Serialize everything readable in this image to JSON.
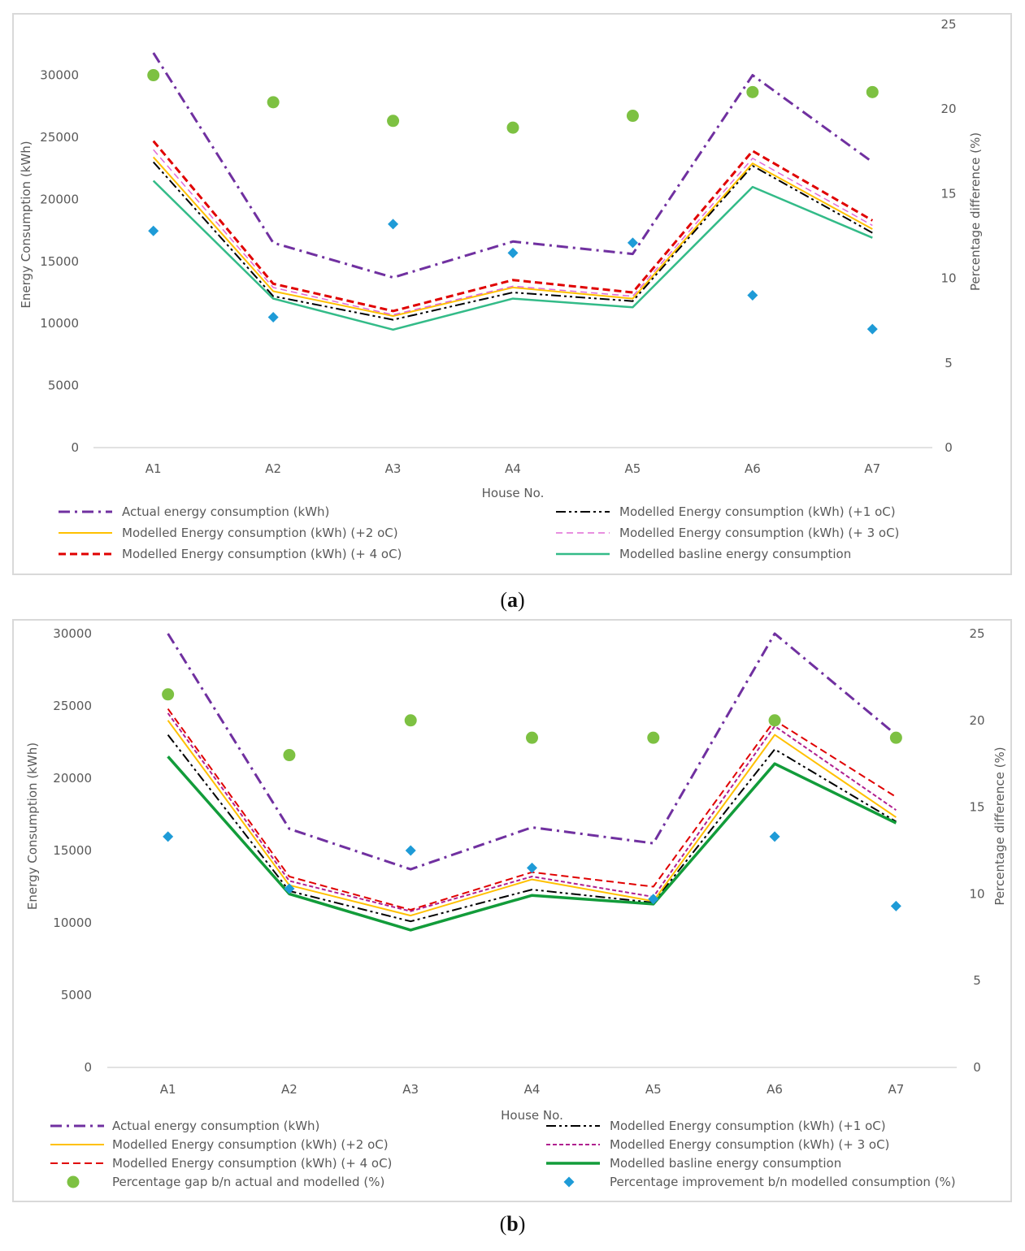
{
  "captions": {
    "a": "a",
    "b": "b"
  },
  "colors": {
    "actual": "#7030a0",
    "plus1": "#000000",
    "plus2": "#ffc000",
    "plus3": "#c00080",
    "plus4": "#e00000",
    "baseline_a": "#33bb88",
    "baseline_b": "#129c3a",
    "gap": "#7dc142",
    "improve": "#1e9bd7"
  },
  "chart_data": [
    {
      "id": "a",
      "type": "line",
      "categories": [
        "A1",
        "A2",
        "A3",
        "A4",
        "A5",
        "A6",
        "A7"
      ],
      "xlabel": "House No.",
      "ylabel": "Energy Consumption (kWh)",
      "y2label": "Percentage difference (%)",
      "ylim": [
        0,
        32000
      ],
      "yticks": [
        0,
        5000,
        10000,
        15000,
        20000,
        25000,
        30000
      ],
      "y2lim": [
        0,
        25
      ],
      "y2ticks": [
        0,
        5,
        10,
        15,
        20,
        25
      ],
      "series": [
        {
          "key": "actual",
          "name": "Actual energy consumption (kWh)",
          "values": [
            31800,
            16500,
            13700,
            16600,
            15600,
            30000,
            23000
          ],
          "color": "#7030a0",
          "dash": "14,6,3,6",
          "width": 3
        },
        {
          "key": "plus1",
          "name": "Modelled Energy consumption (kWh) (+1 oC)",
          "values": [
            23000,
            12200,
            10300,
            12500,
            11800,
            22700,
            17300
          ],
          "color": "#000000",
          "dash": "12,4,3,4,3,4",
          "width": 2
        },
        {
          "key": "plus2",
          "name": "Modelled Energy consumption (kWh) (+2 oC)",
          "values": [
            23400,
            12600,
            10600,
            12900,
            12000,
            22900,
            17600
          ],
          "color": "#ffc000",
          "dash": "",
          "width": 2
        },
        {
          "key": "plus3",
          "name": "Modelled Energy consumption (kWh) (+ 3 oC)",
          "values": [
            24000,
            12900,
            10700,
            13000,
            12200,
            23300,
            17900
          ],
          "color": "#e06ad6",
          "dash": "8,5",
          "width": 1.5
        },
        {
          "key": "plus4",
          "name": "Modelled Energy consumption (kWh) (+ 4 oC)",
          "values": [
            24700,
            13200,
            11000,
            13500,
            12500,
            23900,
            18300
          ],
          "color": "#e00000",
          "dash": "9,5",
          "width": 3
        },
        {
          "key": "baseline",
          "name": "Modelled basline energy consumption",
          "values": [
            21500,
            12000,
            9500,
            12000,
            11300,
            21000,
            16900
          ],
          "color": "#33bb88",
          "dash": "",
          "width": 2.5
        }
      ],
      "points": [
        {
          "key": "gap",
          "name": "",
          "values": [
            22.0,
            20.4,
            19.3,
            18.9,
            19.6,
            21.0,
            21.0
          ],
          "color": "#7dc142",
          "shape": "circle"
        },
        {
          "key": "improve",
          "name": "",
          "values": [
            12.8,
            7.7,
            13.2,
            11.5,
            12.1,
            9.0,
            7.0
          ],
          "color": "#1e9bd7",
          "shape": "diamond"
        }
      ],
      "legend_a": {
        "left": [
          "Actual energy consumption (kWh)",
          "Modelled Energy consumption (kWh) (+2 oC)",
          "Modelled Energy consumption (kWh) (+ 4 oC)"
        ],
        "right": [
          "Modelled Energy consumption (kWh) (+1 oC)",
          "Modelled Energy consumption (kWh) (+ 3 oC)",
          "Modelled basline energy consumption"
        ]
      }
    },
    {
      "id": "b",
      "type": "line",
      "categories": [
        "A1",
        "A2",
        "A3",
        "A4",
        "A5",
        "A6",
        "A7"
      ],
      "xlabel": "House No.",
      "ylabel": "Energy Consumption (kWh)",
      "y2label": "Percentage difference (%)",
      "ylim": [
        0,
        30000
      ],
      "yticks": [
        0,
        5000,
        10000,
        15000,
        20000,
        25000,
        30000
      ],
      "y2lim": [
        0,
        25
      ],
      "y2ticks": [
        0,
        5,
        10,
        15,
        20,
        25
      ],
      "series": [
        {
          "key": "actual",
          "name": "Actual energy consumption (kWh)",
          "values": [
            30000,
            16500,
            13700,
            16600,
            15500,
            30000,
            23000
          ],
          "color": "#7030a0",
          "dash": "14,6,3,6",
          "width": 3
        },
        {
          "key": "plus1",
          "name": "Modelled Energy consumption (kWh) (+1 oC)",
          "values": [
            23000,
            12200,
            10100,
            12300,
            11400,
            22000,
            17000
          ],
          "color": "#000000",
          "dash": "12,4,3,4,3,4",
          "width": 2
        },
        {
          "key": "plus2",
          "name": "Modelled Energy consumption (kWh) (+2 oC)",
          "values": [
            24000,
            12600,
            10500,
            13000,
            11500,
            23000,
            17300
          ],
          "color": "#ffc000",
          "dash": "",
          "width": 2
        },
        {
          "key": "plus3",
          "name": "Modelled Energy consumption (kWh) (+ 3 oC)",
          "values": [
            24500,
            12900,
            10800,
            13200,
            11800,
            23600,
            17800
          ],
          "color": "#b0208f",
          "dash": "5,3",
          "width": 2
        },
        {
          "key": "plus4",
          "name": "Modelled Energy consumption (kWh) (+ 4 oC)",
          "values": [
            24800,
            13200,
            10900,
            13500,
            12500,
            24000,
            18700
          ],
          "color": "#e00000",
          "dash": "9,5",
          "width": 2
        },
        {
          "key": "baseline",
          "name": "Modelled basline energy consumption",
          "values": [
            21500,
            12000,
            9500,
            11900,
            11300,
            21000,
            16900
          ],
          "color": "#129c3a",
          "dash": "",
          "width": 3.5
        }
      ],
      "points": [
        {
          "key": "gap",
          "name": "Percentage gap b/n actual and modelled (%)",
          "values": [
            21.5,
            18.0,
            20.0,
            19.0,
            19.0,
            20.0,
            19.0
          ],
          "color": "#7dc142",
          "shape": "circle"
        },
        {
          "key": "improve",
          "name": "Percentage improvement b/n modelled consumption (%)",
          "values": [
            13.3,
            10.3,
            12.5,
            11.5,
            9.7,
            13.3,
            9.3
          ],
          "color": "#1e9bd7",
          "shape": "diamond"
        }
      ],
      "legend_b": {
        "left": [
          "Actual energy consumption (kWh)",
          "Modelled Energy consumption (kWh) (+2 oC)",
          "Modelled Energy consumption (kWh) (+ 4 oC)",
          "Percentage gap b/n actual and modelled (%)"
        ],
        "right": [
          "Modelled Energy consumption (kWh) (+1 oC)",
          "Modelled Energy consumption (kWh) (+ 3 oC)",
          "Modelled basline energy consumption",
          "Percentage improvement b/n modelled consumption (%)"
        ]
      }
    }
  ]
}
